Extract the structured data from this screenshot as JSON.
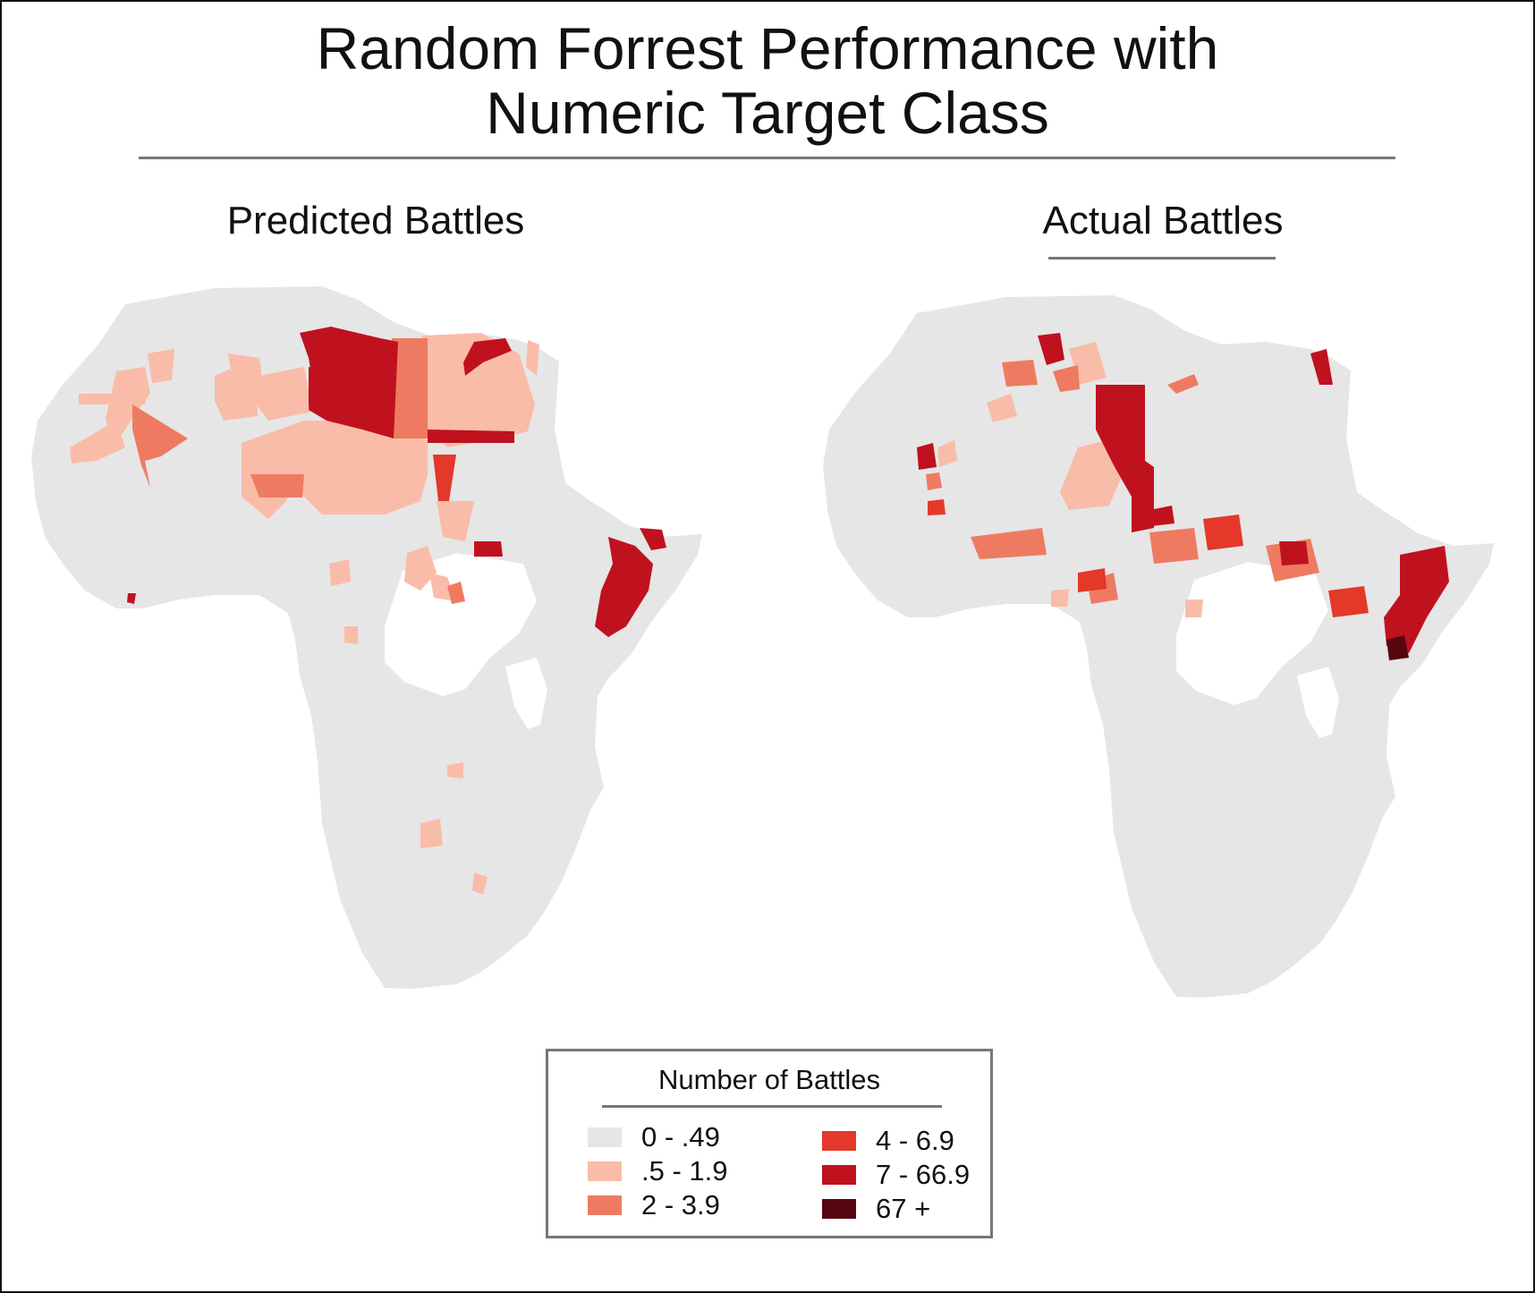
{
  "title_line1": "Random Forrest Performance with",
  "title_line2": "Numeric Target Class",
  "maps": {
    "predicted": {
      "label": "Predicted Battles"
    },
    "actual": {
      "label": "Actual Battles"
    }
  },
  "legend": {
    "title": "Number of Battles",
    "items": [
      {
        "label": "0 - .49",
        "color": "#e6e6e6"
      },
      {
        "label": ".5 - 1.9",
        "color": "#f9bca8"
      },
      {
        "label": "2 - 3.9",
        "color": "#ee7b61"
      },
      {
        "label": "4 - 6.9",
        "color": "#e4382a"
      },
      {
        "label": "7 - 66.9",
        "color": "#c0111f"
      },
      {
        "label": "67 +",
        "color": "#56060f"
      }
    ]
  }
}
